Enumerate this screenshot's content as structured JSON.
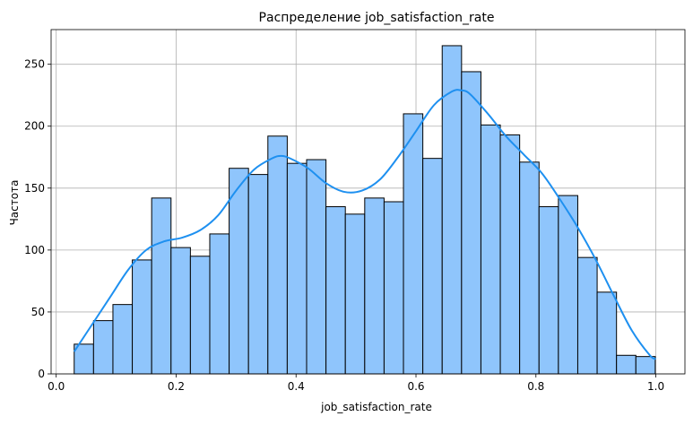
{
  "chart_data": {
    "type": "bar",
    "subtype": "histogram-with-kde",
    "title": "Распределение job_satisfaction_rate",
    "xlabel": "job_satisfaction_rate",
    "ylabel": "Частота",
    "xlim": [
      -0.0085,
      1.0485
    ],
    "ylim": [
      0,
      278
    ],
    "xticks": [
      0.0,
      0.2,
      0.4,
      0.6,
      0.8,
      1.0
    ],
    "xtick_labels": [
      "0.0",
      "0.2",
      "0.4",
      "0.6",
      "0.8",
      "1.0"
    ],
    "yticks": [
      0,
      50,
      100,
      150,
      200,
      250
    ],
    "ytick_labels": [
      "0",
      "50",
      "100",
      "150",
      "200",
      "250"
    ],
    "grid": true,
    "bin_start": 0.03,
    "bin_width": 0.0323,
    "counts": [
      24,
      43,
      56,
      92,
      142,
      102,
      95,
      113,
      166,
      161,
      192,
      170,
      173,
      135,
      129,
      142,
      139,
      210,
      174,
      265,
      244,
      201,
      193,
      171,
      135,
      144,
      94,
      66,
      15,
      14
    ],
    "bar_color": "#8fc5fc",
    "edge_color": "#000000",
    "kde": {
      "color": "#1e90f0",
      "x": [
        0.03,
        0.06,
        0.09,
        0.12,
        0.15,
        0.18,
        0.21,
        0.24,
        0.27,
        0.3,
        0.33,
        0.36,
        0.375,
        0.39,
        0.42,
        0.45,
        0.48,
        0.51,
        0.54,
        0.57,
        0.6,
        0.63,
        0.66,
        0.675,
        0.69,
        0.72,
        0.75,
        0.78,
        0.81,
        0.84,
        0.87,
        0.9,
        0.93,
        0.96,
        0.99,
        1.0
      ],
      "y": [
        18,
        40,
        62,
        84,
        100,
        107,
        110,
        116,
        128,
        148,
        165,
        174,
        176,
        174,
        166,
        154,
        147,
        148,
        157,
        175,
        196,
        217,
        228,
        229,
        226,
        210,
        192,
        177,
        162,
        141,
        118,
        92,
        63,
        35,
        15,
        12
      ]
    }
  }
}
